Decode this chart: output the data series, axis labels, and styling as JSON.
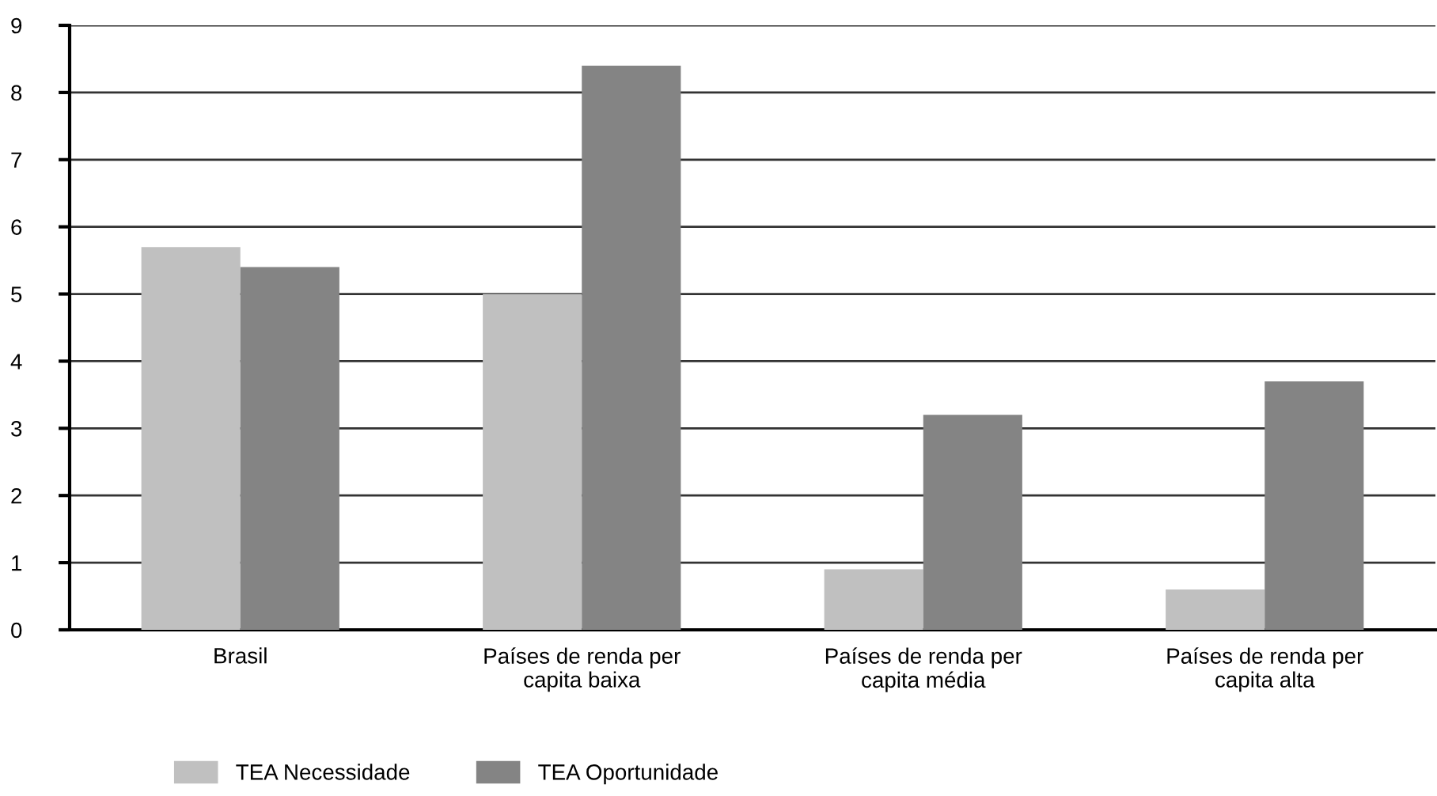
{
  "chart_data": {
    "type": "bar",
    "categories": [
      "Brasil",
      "Países de renda per\ncapita baixa",
      "Países de renda per\ncapita média",
      "Países de renda per\ncapita alta"
    ],
    "series": [
      {
        "name": "TEA Necessidade",
        "color": "#c0c0c0",
        "values": [
          5.7,
          5.0,
          0.9,
          0.6
        ]
      },
      {
        "name": "TEA Oportunidade",
        "color": "#848484",
        "values": [
          5.4,
          8.4,
          3.2,
          3.7
        ]
      }
    ],
    "ylim": [
      0,
      9
    ],
    "yticks": [
      0,
      1,
      2,
      3,
      4,
      5,
      6,
      7,
      8,
      9
    ],
    "grid": "y",
    "legend": "bottom left"
  }
}
